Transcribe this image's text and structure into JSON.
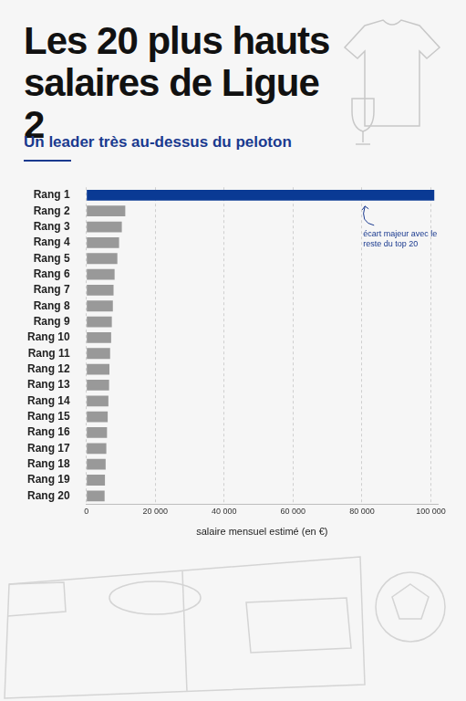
{
  "chart_data": {
    "type": "bar",
    "orientation": "horizontal",
    "title": "Les 20 plus hauts salaires de Ligue 2",
    "subtitle": "Un leader très au-dessus du peloton",
    "annotation": "écart majeur avec le reste du top 20",
    "categories": [
      "Rang 1",
      "Rang 2",
      "Rang 3",
      "Rang 4",
      "Rang 5",
      "Rang 6",
      "Rang 7",
      "Rang 8",
      "Rang 9",
      "Rang 10",
      "Rang 11",
      "Rang 12",
      "Rang 13",
      "Rang 14",
      "Rang 15",
      "Rang 16",
      "Rang 17",
      "Rang 18",
      "Rang 19",
      "Rang 20"
    ],
    "values": [
      101000,
      11300,
      10300,
      9500,
      9000,
      8200,
      7900,
      7700,
      7400,
      7200,
      6900,
      6700,
      6600,
      6400,
      6200,
      6000,
      5800,
      5600,
      5400,
      5300
    ],
    "colors": [
      "#0a3a94",
      "#999999",
      "#999999",
      "#999999",
      "#999999",
      "#999999",
      "#999999",
      "#999999",
      "#999999",
      "#999999",
      "#999999",
      "#999999",
      "#999999",
      "#999999",
      "#999999",
      "#999999",
      "#999999",
      "#999999",
      "#999999",
      "#999999"
    ],
    "x_label": "salaire mensuel estimé (en €)",
    "xlim": [
      0,
      102000
    ],
    "xticks": [
      0,
      {
        "value": 20000,
        "label": "20 000"
      },
      {
        "value": 40000,
        "label": "40 000"
      },
      {
        "value": 60000,
        "label": "60 000"
      },
      {
        "value": 80000,
        "label": "80 000"
      },
      {
        "value": 100000,
        "label": "100 000"
      }
    ],
    "grid": true
  }
}
